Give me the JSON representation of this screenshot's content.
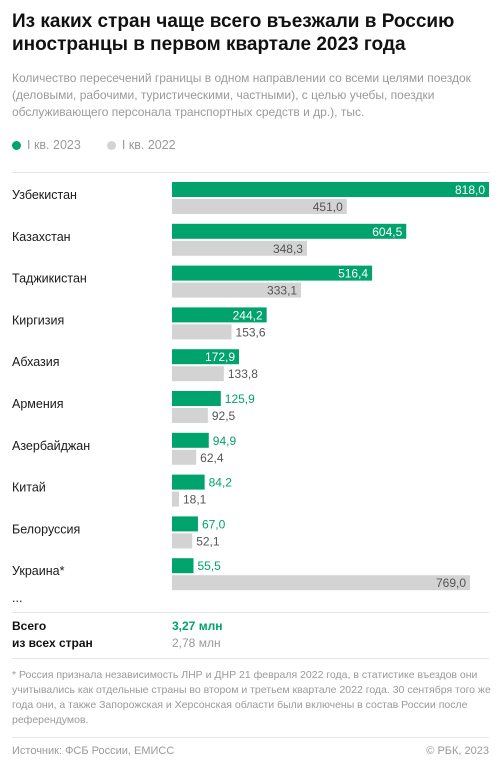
{
  "header": {
    "title": "Из каких стран чаще всего въезжали в Россию иностранцы в первом квартале 2023 года",
    "subtitle": "Количество пересечений границы в одном направлении со всеми целями поездок (деловыми, рабочими, туристическими, частными), с целью учебы, поездки обслуживающего персонала транспортных средств и др.), тыс."
  },
  "chart_data": {
    "type": "bar",
    "orientation": "horizontal",
    "categories": [
      "Узбекистан",
      "Казахстан",
      "Таджикистан",
      "Киргизия",
      "Абхазия",
      "Армения",
      "Азербайджан",
      "Китай",
      "Белоруссия",
      "Украина*"
    ],
    "series": [
      {
        "name": "I кв. 2023",
        "color": "#00a36c",
        "values": [
          818.0,
          604.5,
          516.4,
          244.2,
          172.9,
          125.9,
          94.9,
          84.2,
          67.0,
          55.5
        ],
        "labels": [
          "818,0",
          "604,5",
          "516,4",
          "244,2",
          "172,9",
          "125,9",
          "94,9",
          "84,2",
          "67,0",
          "55,5"
        ]
      },
      {
        "name": "I кв. 2022",
        "color": "#d3d3d3",
        "values": [
          451.0,
          348.3,
          333.1,
          153.6,
          133.8,
          92.5,
          62.4,
          18.1,
          52.1,
          769.0
        ],
        "labels": [
          "451,0",
          "348,3",
          "333,1",
          "153,6",
          "133,8",
          "92,5",
          "62,4",
          "18,1",
          "52,1",
          "769,0"
        ]
      }
    ],
    "ellipsis": "...",
    "xlim": [
      0,
      818
    ],
    "grid": false,
    "legend": "top-left"
  },
  "totals": {
    "label_line1": "Всего",
    "label_line2": "из всех стран",
    "value_2023": "3,27 млн",
    "value_2022": "2,78 млн"
  },
  "footnote": "* Россия признала независимость ЛНР и ДНР 21 февраля 2022 года, в статистике въездов они учитывались как отдельные страны во втором и третьем квартале 2022 года. 30 сентября того же года они, а также Запорожская и Херсонская области были включены в состав России после референдумов.",
  "footer": {
    "source": "Источник: ФСБ России, ЕМИСС",
    "copyright": "© РБК, 2023"
  }
}
